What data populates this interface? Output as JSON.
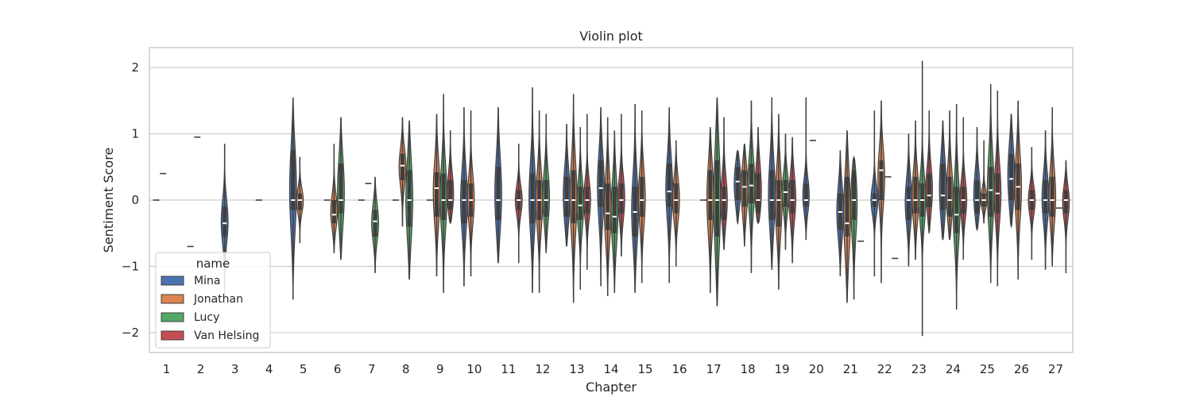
{
  "chart_data": {
    "type": "violin",
    "title": "Violin plot",
    "xlabel": "Chapter",
    "ylabel": "Sentiment Score",
    "ylim": [
      -2.3,
      2.3
    ],
    "yticks": [
      2,
      1,
      0,
      -1,
      -2
    ],
    "ytick_labels": [
      "2",
      "1",
      "0",
      "−1",
      "−2"
    ],
    "categories": [
      "1",
      "2",
      "3",
      "4",
      "5",
      "6",
      "7",
      "8",
      "9",
      "10",
      "11",
      "12",
      "13",
      "14",
      "15",
      "16",
      "17",
      "18",
      "19",
      "20",
      "21",
      "22",
      "23",
      "24",
      "25",
      "26",
      "27"
    ],
    "grid": "horizontal",
    "legend": {
      "title": "name",
      "placement": "lower-left"
    },
    "series": [
      {
        "name": "Mina",
        "color": "#4c72b0"
      },
      {
        "name": "Jonathan",
        "color": "#dd8452"
      },
      {
        "name": "Lucy",
        "color": "#55a868"
      },
      {
        "name": "Van Helsing",
        "color": "#c44e52"
      }
    ],
    "violins": [
      {
        "chapter": "1",
        "name": "Mina",
        "median": 0,
        "min": 0,
        "max": 0
      },
      {
        "chapter": "1",
        "name": "Jonathan",
        "median": 0.4,
        "min": 0.4,
        "max": 0.4
      },
      {
        "chapter": "2",
        "name": "Mina",
        "median": -0.7,
        "min": -0.7,
        "max": -0.7
      },
      {
        "chapter": "2",
        "name": "Jonathan",
        "median": 0.95,
        "min": 0.95,
        "max": 0.95
      },
      {
        "chapter": "3",
        "name": "Mina",
        "median": -0.35,
        "q1": -0.55,
        "q3": -0.1,
        "min": -1.4,
        "max": 0.85
      },
      {
        "chapter": "4",
        "name": "Mina",
        "median": 0,
        "min": 0,
        "max": 0
      },
      {
        "chapter": "5",
        "name": "Mina",
        "median": 0,
        "q1": -0.15,
        "q3": 0.75,
        "min": -1.5,
        "max": 1.55
      },
      {
        "chapter": "5",
        "name": "Jonathan",
        "median": 0,
        "q1": -0.15,
        "q3": 0.1,
        "min": -0.65,
        "max": 0.65
      },
      {
        "chapter": "6",
        "name": "Mina",
        "median": 0,
        "min": 0,
        "max": 0
      },
      {
        "chapter": "6",
        "name": "Jonathan",
        "median": -0.22,
        "q1": -0.35,
        "q3": 0,
        "min": -0.8,
        "max": 0.85
      },
      {
        "chapter": "6",
        "name": "Lucy",
        "median": 0,
        "q1": -0.2,
        "q3": 0.55,
        "min": -0.9,
        "max": 1.25
      },
      {
        "chapter": "7",
        "name": "Mina",
        "median": 0,
        "min": 0,
        "max": 0
      },
      {
        "chapter": "7",
        "name": "Jonathan",
        "median": 0.25,
        "min": 0.25,
        "max": 0.25
      },
      {
        "chapter": "7",
        "name": "Lucy",
        "median": -0.32,
        "q1": -0.55,
        "q3": -0.15,
        "min": -1.1,
        "max": 0.35
      },
      {
        "chapter": "8",
        "name": "Mina",
        "median": 0,
        "min": 0,
        "max": 0
      },
      {
        "chapter": "8",
        "name": "Jonathan",
        "median": 0.52,
        "q1": 0.3,
        "q3": 0.7,
        "min": -0.4,
        "max": 1.25
      },
      {
        "chapter": "8",
        "name": "Lucy",
        "median": 0,
        "q1": -0.4,
        "q3": 0.45,
        "min": -1.2,
        "max": 1.2
      },
      {
        "chapter": "9",
        "name": "Mina",
        "median": 0,
        "min": 0,
        "max": 0
      },
      {
        "chapter": "9",
        "name": "Jonathan",
        "median": 0.18,
        "q1": -0.25,
        "q3": 0.42,
        "min": -1.15,
        "max": 1.3
      },
      {
        "chapter": "9",
        "name": "Lucy",
        "median": 0,
        "q1": -0.3,
        "q3": 0.4,
        "min": -1.4,
        "max": 1.6
      },
      {
        "chapter": "9",
        "name": "Van Helsing",
        "median": 0,
        "q1": -0.15,
        "q3": 0.3,
        "min": -0.35,
        "max": 1.05
      },
      {
        "chapter": "10",
        "name": "Mina",
        "median": 0,
        "q1": -0.35,
        "q3": 0.3,
        "min": -1.3,
        "max": 1.4
      },
      {
        "chapter": "10",
        "name": "Jonathan",
        "median": 0,
        "q1": -0.25,
        "q3": 0.25,
        "min": -1.15,
        "max": 1.35
      },
      {
        "chapter": "11",
        "name": "Mina",
        "median": 0,
        "q1": -0.3,
        "q3": 0.5,
        "min": -0.95,
        "max": 1.4
      },
      {
        "chapter": "11",
        "name": "Van Helsing",
        "median": 0,
        "q1": -0.15,
        "q3": 0.15,
        "min": -0.95,
        "max": 0.85
      },
      {
        "chapter": "12",
        "name": "Mina",
        "median": 0,
        "q1": -0.35,
        "q3": 0.4,
        "min": -1.4,
        "max": 1.7
      },
      {
        "chapter": "12",
        "name": "Jonathan",
        "median": 0,
        "q1": -0.3,
        "q3": 0.3,
        "min": -1.4,
        "max": 1.35
      },
      {
        "chapter": "12",
        "name": "Lucy",
        "median": 0,
        "q1": -0.25,
        "q3": 0.3,
        "min": -0.8,
        "max": 1.3
      },
      {
        "chapter": "13",
        "name": "Mina",
        "median": 0,
        "q1": -0.25,
        "q3": 0.35,
        "min": -0.7,
        "max": 1.15
      },
      {
        "chapter": "13",
        "name": "Jonathan",
        "median": 0,
        "q1": -0.35,
        "q3": 0.45,
        "min": -1.55,
        "max": 1.6
      },
      {
        "chapter": "13",
        "name": "Lucy",
        "median": -0.08,
        "q1": -0.3,
        "q3": 0.2,
        "min": -1.35,
        "max": 1.1
      },
      {
        "chapter": "13",
        "name": "Van Helsing",
        "median": 0,
        "q1": -0.2,
        "q3": 0.2,
        "min": -1.05,
        "max": 1.3
      },
      {
        "chapter": "14",
        "name": "Mina",
        "median": 0.18,
        "q1": -0.1,
        "q3": 0.6,
        "min": -1.3,
        "max": 1.4
      },
      {
        "chapter": "14",
        "name": "Jonathan",
        "median": -0.2,
        "q1": -0.45,
        "q3": 0.25,
        "min": -1.45,
        "max": 1.25
      },
      {
        "chapter": "14",
        "name": "Lucy",
        "median": -0.25,
        "q1": -0.5,
        "q3": 0.2,
        "min": -1.4,
        "max": 1.05
      },
      {
        "chapter": "14",
        "name": "Van Helsing",
        "median": 0,
        "q1": -0.2,
        "q3": 0.25,
        "min": -0.85,
        "max": 1.3
      },
      {
        "chapter": "15",
        "name": "Mina",
        "median": -0.18,
        "q1": -0.55,
        "q3": 0.2,
        "min": -1.4,
        "max": 1.45
      },
      {
        "chapter": "15",
        "name": "Jonathan",
        "median": 0,
        "q1": -0.25,
        "q3": 0.35,
        "min": -1.25,
        "max": 1.35
      },
      {
        "chapter": "16",
        "name": "Mina",
        "median": 0.13,
        "q1": -0.1,
        "q3": 0.55,
        "min": -1.25,
        "max": 1.4
      },
      {
        "chapter": "16",
        "name": "Jonathan",
        "median": 0,
        "q1": -0.2,
        "q3": 0.25,
        "min": -1.0,
        "max": 0.9
      },
      {
        "chapter": "17",
        "name": "Mina",
        "median": 0,
        "min": 0,
        "max": 0
      },
      {
        "chapter": "17",
        "name": "Jonathan",
        "median": 0,
        "q1": -0.3,
        "q3": 0.45,
        "min": -1.4,
        "max": 1.1
      },
      {
        "chapter": "17",
        "name": "Lucy",
        "median": 0,
        "q1": -0.55,
        "q3": 0.6,
        "min": -1.6,
        "max": 1.55
      },
      {
        "chapter": "17",
        "name": "Van Helsing",
        "median": 0,
        "q1": -0.3,
        "q3": 0.2,
        "min": -0.75,
        "max": 1.25
      },
      {
        "chapter": "18",
        "name": "Mina",
        "median": 0.28,
        "q1": 0,
        "q3": 0.5,
        "min": -0.35,
        "max": 0.75
      },
      {
        "chapter": "18",
        "name": "Jonathan",
        "median": 0.2,
        "q1": -0.1,
        "q3": 0.45,
        "min": -0.7,
        "max": 0.85
      },
      {
        "chapter": "18",
        "name": "Lucy",
        "median": 0.22,
        "q1": -0.05,
        "q3": 0.55,
        "min": -1.1,
        "max": 1.5
      },
      {
        "chapter": "18",
        "name": "Van Helsing",
        "median": 0,
        "q1": -0.2,
        "q3": 0.4,
        "min": -0.35,
        "max": 1.1
      },
      {
        "chapter": "19",
        "name": "Mina",
        "median": 0,
        "q1": -0.3,
        "q3": 0.45,
        "min": -1.05,
        "max": 1.55
      },
      {
        "chapter": "19",
        "name": "Jonathan",
        "median": 0,
        "q1": -0.4,
        "q3": 0.3,
        "min": -1.35,
        "max": 1.3
      },
      {
        "chapter": "19",
        "name": "Lucy",
        "median": 0.12,
        "q1": -0.1,
        "q3": 0.3,
        "min": -0.75,
        "max": 1.0
      },
      {
        "chapter": "19",
        "name": "Van Helsing",
        "median": 0,
        "q1": -0.2,
        "q3": 0.3,
        "min": -0.95,
        "max": 0.95
      },
      {
        "chapter": "20",
        "name": "Mina",
        "median": 0,
        "q1": -0.1,
        "q3": 0.25,
        "min": -0.6,
        "max": 1.55
      },
      {
        "chapter": "20",
        "name": "Jonathan",
        "median": 0.9,
        "min": 0.9,
        "max": 0.9
      },
      {
        "chapter": "21",
        "name": "Mina",
        "median": -0.18,
        "q1": -0.45,
        "q3": 0.1,
        "min": -1.15,
        "max": 0.75
      },
      {
        "chapter": "21",
        "name": "Jonathan",
        "median": -0.35,
        "q1": -0.55,
        "q3": 0.35,
        "min": -1.55,
        "max": 1.05
      },
      {
        "chapter": "21",
        "name": "Lucy",
        "median": 0,
        "q1": -0.3,
        "q3": 0.45,
        "min": -1.5,
        "max": 0.65
      },
      {
        "chapter": "21",
        "name": "Van Helsing",
        "median": -0.62,
        "min": -0.62,
        "max": -0.62
      },
      {
        "chapter": "22",
        "name": "Mina",
        "median": 0,
        "q1": -0.1,
        "q3": 0.1,
        "min": -1.15,
        "max": 1.35
      },
      {
        "chapter": "22",
        "name": "Jonathan",
        "median": 0.45,
        "q1": 0,
        "q3": 0.6,
        "min": -1.25,
        "max": 1.5
      },
      {
        "chapter": "22",
        "name": "Lucy",
        "median": 0.35,
        "min": 0.35,
        "max": 0.35
      },
      {
        "chapter": "22",
        "name": "Van Helsing",
        "median": -0.88,
        "min": -0.88,
        "max": -0.88
      },
      {
        "chapter": "23",
        "name": "Mina",
        "median": 0,
        "q1": -0.3,
        "q3": 0.2,
        "min": -1.0,
        "max": 1.0
      },
      {
        "chapter": "23",
        "name": "Jonathan",
        "median": 0,
        "q1": -0.2,
        "q3": 0.35,
        "min": -0.9,
        "max": 1.2
      },
      {
        "chapter": "23",
        "name": "Lucy",
        "median": 0,
        "q1": -0.25,
        "q3": 0.25,
        "min": -2.05,
        "max": 2.1
      },
      {
        "chapter": "23",
        "name": "Van Helsing",
        "median": 0.07,
        "q1": -0.1,
        "q3": 0.4,
        "min": -0.5,
        "max": 1.35
      },
      {
        "chapter": "24",
        "name": "Mina",
        "median": 0.07,
        "q1": -0.15,
        "q3": 0.55,
        "min": -0.6,
        "max": 1.2
      },
      {
        "chapter": "24",
        "name": "Jonathan",
        "median": 0,
        "q1": -0.25,
        "q3": 0.35,
        "min": -0.6,
        "max": 1.35
      },
      {
        "chapter": "24",
        "name": "Lucy",
        "median": -0.22,
        "q1": -0.5,
        "q3": 0.2,
        "min": -1.65,
        "max": 1.45
      },
      {
        "chapter": "24",
        "name": "Van Helsing",
        "median": 0,
        "q1": -0.2,
        "q3": 0.2,
        "min": -0.9,
        "max": 1.25
      },
      {
        "chapter": "25",
        "name": "Mina",
        "median": 0,
        "q1": -0.2,
        "q3": 0.3,
        "min": -0.45,
        "max": 1.1
      },
      {
        "chapter": "25",
        "name": "Jonathan",
        "median": 0,
        "q1": -0.1,
        "q3": 0.1,
        "min": -0.35,
        "max": 0.9
      },
      {
        "chapter": "25",
        "name": "Lucy",
        "median": 0.15,
        "q1": -0.25,
        "q3": 0.5,
        "min": -1.25,
        "max": 1.75
      },
      {
        "chapter": "25",
        "name": "Van Helsing",
        "median": 0.1,
        "q1": -0.2,
        "q3": 0.4,
        "min": -1.3,
        "max": 1.65
      },
      {
        "chapter": "26",
        "name": "Mina",
        "median": 0.32,
        "q1": 0,
        "q3": 0.7,
        "min": -0.4,
        "max": 1.3
      },
      {
        "chapter": "26",
        "name": "Jonathan",
        "median": 0.2,
        "q1": -0.15,
        "q3": 0.55,
        "min": -1.2,
        "max": 1.5
      },
      {
        "chapter": "26",
        "name": "Van Helsing",
        "median": 0,
        "q1": -0.15,
        "q3": 0.15,
        "min": -0.9,
        "max": 0.8
      },
      {
        "chapter": "27",
        "name": "Mina",
        "median": 0,
        "q1": -0.2,
        "q3": 0.3,
        "min": -1.05,
        "max": 1.05
      },
      {
        "chapter": "27",
        "name": "Jonathan",
        "median": 0,
        "q1": -0.25,
        "q3": 0.35,
        "min": -1.0,
        "max": 1.4
      },
      {
        "chapter": "27",
        "name": "Lucy",
        "median": -0.12,
        "min": -0.12,
        "max": -0.12
      },
      {
        "chapter": "27",
        "name": "Van Helsing",
        "median": 0,
        "q1": -0.2,
        "q3": 0.15,
        "min": -1.1,
        "max": 0.6
      }
    ]
  }
}
